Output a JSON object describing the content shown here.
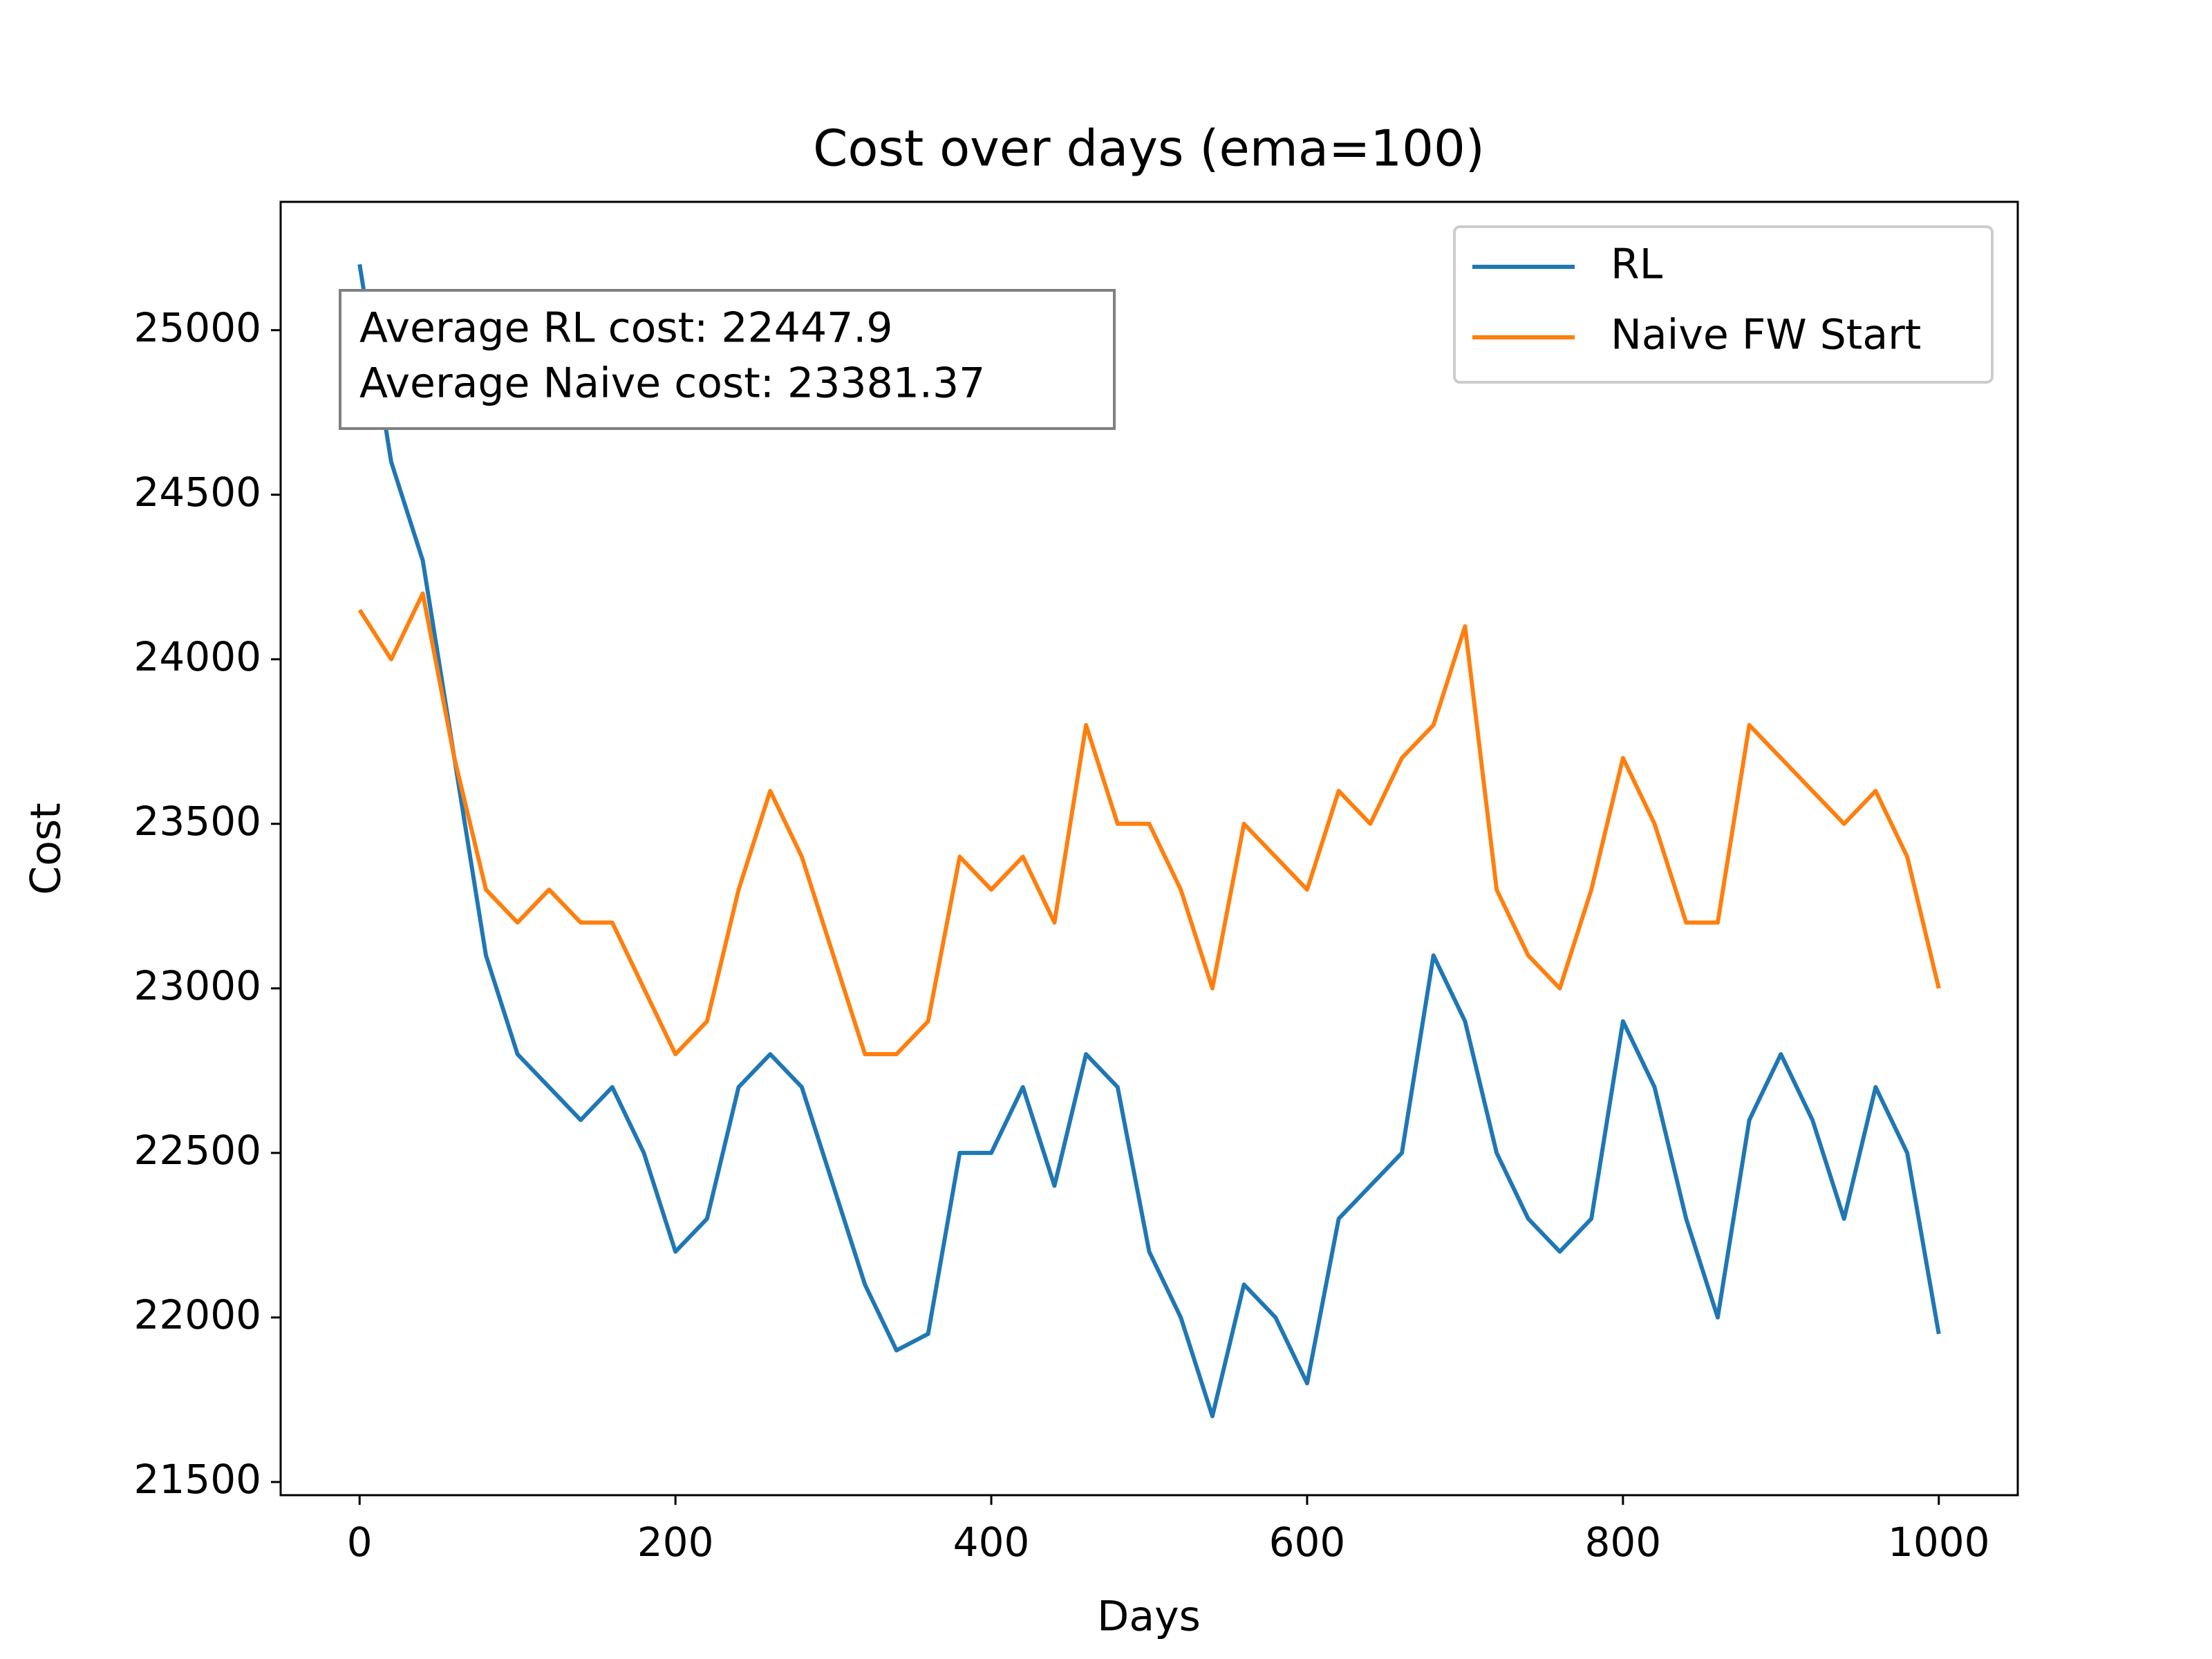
{
  "chart_data": {
    "type": "line",
    "title": "Cost over days (ema=100)",
    "xlabel": "Days",
    "ylabel": "Cost",
    "annotations": [
      "Average RL cost: 22447.9",
      "Average Naive cost: 23381.37"
    ],
    "x": [
      0,
      20,
      40,
      60,
      80,
      100,
      120,
      140,
      160,
      180,
      200,
      220,
      240,
      260,
      280,
      300,
      320,
      340,
      360,
      380,
      400,
      420,
      440,
      460,
      480,
      500,
      520,
      540,
      560,
      580,
      600,
      620,
      640,
      660,
      680,
      700,
      720,
      740,
      760,
      780,
      800,
      820,
      840,
      860,
      880,
      900,
      920,
      940,
      960,
      980,
      1000
    ],
    "series": [
      {
        "name": "RL",
        "color": "#1f77b4",
        "values": [
          25200,
          24600,
          24300,
          23700,
          23100,
          22800,
          22700,
          22600,
          22700,
          22500,
          22200,
          22300,
          22700,
          22800,
          22700,
          22400,
          22100,
          21900,
          21950,
          22500,
          22500,
          22700,
          22400,
          22800,
          22700,
          22200,
          22000,
          21700,
          22100,
          22000,
          21800,
          22300,
          22400,
          22500,
          23100,
          22900,
          22500,
          22300,
          22200,
          22300,
          22900,
          22700,
          22300,
          22000,
          22600,
          22800,
          22600,
          22300,
          22700,
          22500,
          21950
        ]
      },
      {
        "name": "Naive FW Start",
        "color": "#ff7f0e",
        "values": [
          24150,
          24000,
          24200,
          23700,
          23300,
          23200,
          23300,
          23200,
          23200,
          23000,
          22800,
          22900,
          23300,
          23600,
          23400,
          23100,
          22800,
          22800,
          22900,
          23400,
          23300,
          23400,
          23200,
          23800,
          23500,
          23500,
          23300,
          23000,
          23500,
          23400,
          23300,
          23600,
          23500,
          23700,
          23800,
          24100,
          23300,
          23100,
          23000,
          23300,
          23700,
          23500,
          23200,
          23200,
          23800,
          23700,
          23600,
          23500,
          23600,
          23400,
          23000
        ]
      }
    ],
    "xlim": [
      -50,
      1050
    ],
    "ylim": [
      21460,
      25390
    ],
    "xticks": [
      0,
      200,
      400,
      600,
      800,
      1000
    ],
    "yticks": [
      21500,
      22000,
      22500,
      23000,
      23500,
      24000,
      24500,
      25000
    ],
    "legend": "upper right"
  }
}
